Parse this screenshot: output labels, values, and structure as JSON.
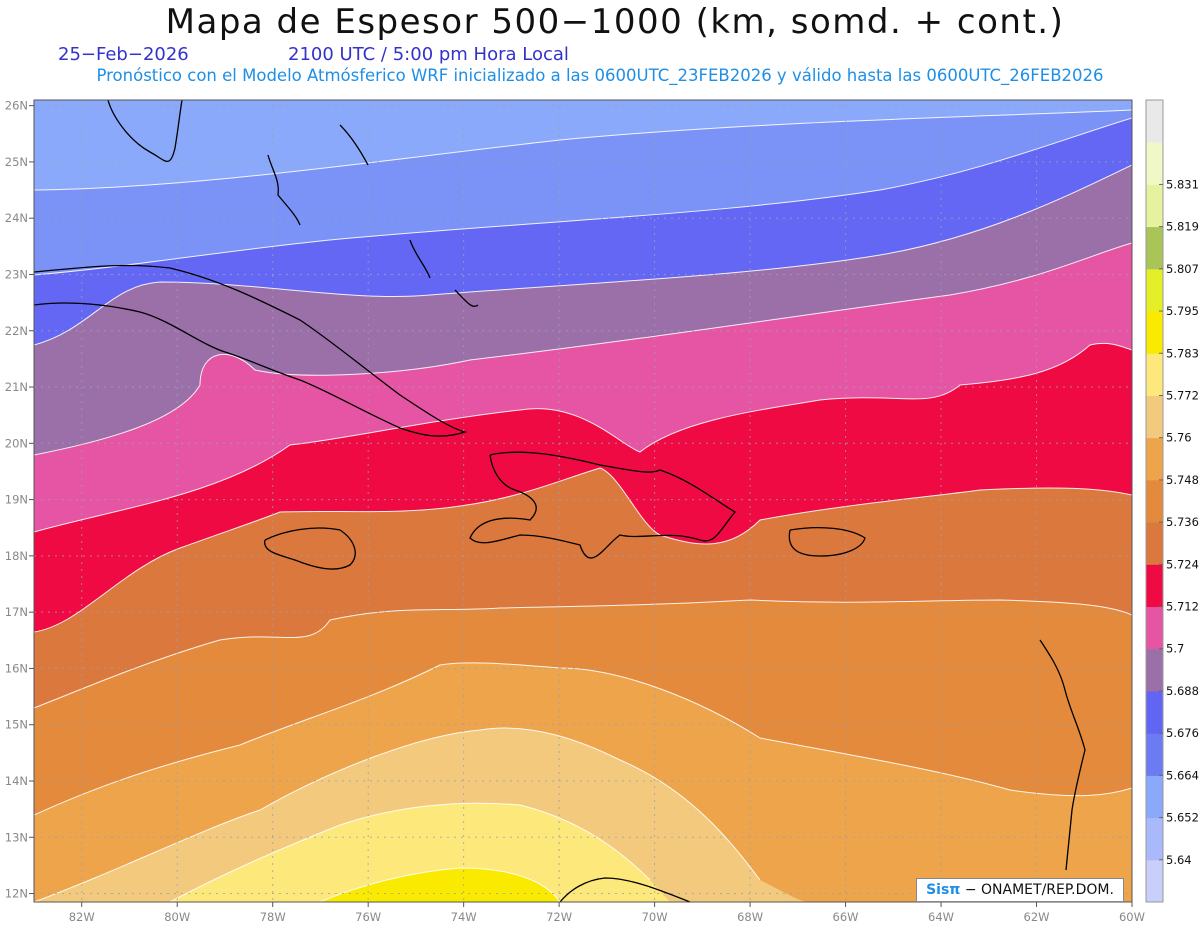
{
  "header": {
    "title": "Mapa de Espesor 500−1000 (km, somd. + cont.)",
    "date": "25−Feb−2026",
    "time": "2100 UTC / 5:00 pm Hora Local",
    "subtitle": "Pronóstico con el Modelo Atmósferico WRF inicializado a las 0600UTC_23FEB2026 y válido hasta las  0600UTC_26FEB2026"
  },
  "map": {
    "lon_range": [
      -83,
      -60
    ],
    "lat_range": [
      11.85,
      26.1
    ],
    "lon_ticks": [
      "82W",
      "80W",
      "78W",
      "76W",
      "74W",
      "72W",
      "70W",
      "68W",
      "66W",
      "64W",
      "62W",
      "60W"
    ],
    "lat_ticks": [
      "26N",
      "25N",
      "24N",
      "23N",
      "22N",
      "21N",
      "20N",
      "19N",
      "18N",
      "17N",
      "16N",
      "15N",
      "14N",
      "13N",
      "12N"
    ],
    "contour_bands": [
      {
        "color": "#e6007e",
        "note": ""
      }
    ]
  },
  "colorbar": {
    "labels": [
      "5.831",
      "5.819",
      "5.807",
      "5.795",
      "5.783",
      "5.772",
      "5.76",
      "5.748",
      "5.736",
      "5.724",
      "5.712",
      "5.7",
      "5.688",
      "5.676",
      "5.664",
      "5.652",
      "5.64"
    ],
    "colors": [
      "#c8cff8",
      "#a9b9fb",
      "#8ba9fb",
      "#6a7bf3",
      "#6265f3",
      "#9b70a9",
      "#e655a3",
      "#ef0a43",
      "#db783d",
      "#e38a3c",
      "#eea44a",
      "#f3ca7d",
      "#fde87c",
      "#faea00",
      "#e5ef27",
      "#a9c457",
      "#e6f29e",
      "#f0f8c8",
      "#e9e9e9"
    ]
  },
  "credit": {
    "logo": "Sisπ",
    "text": "− ONAMET/REP.DOM."
  }
}
